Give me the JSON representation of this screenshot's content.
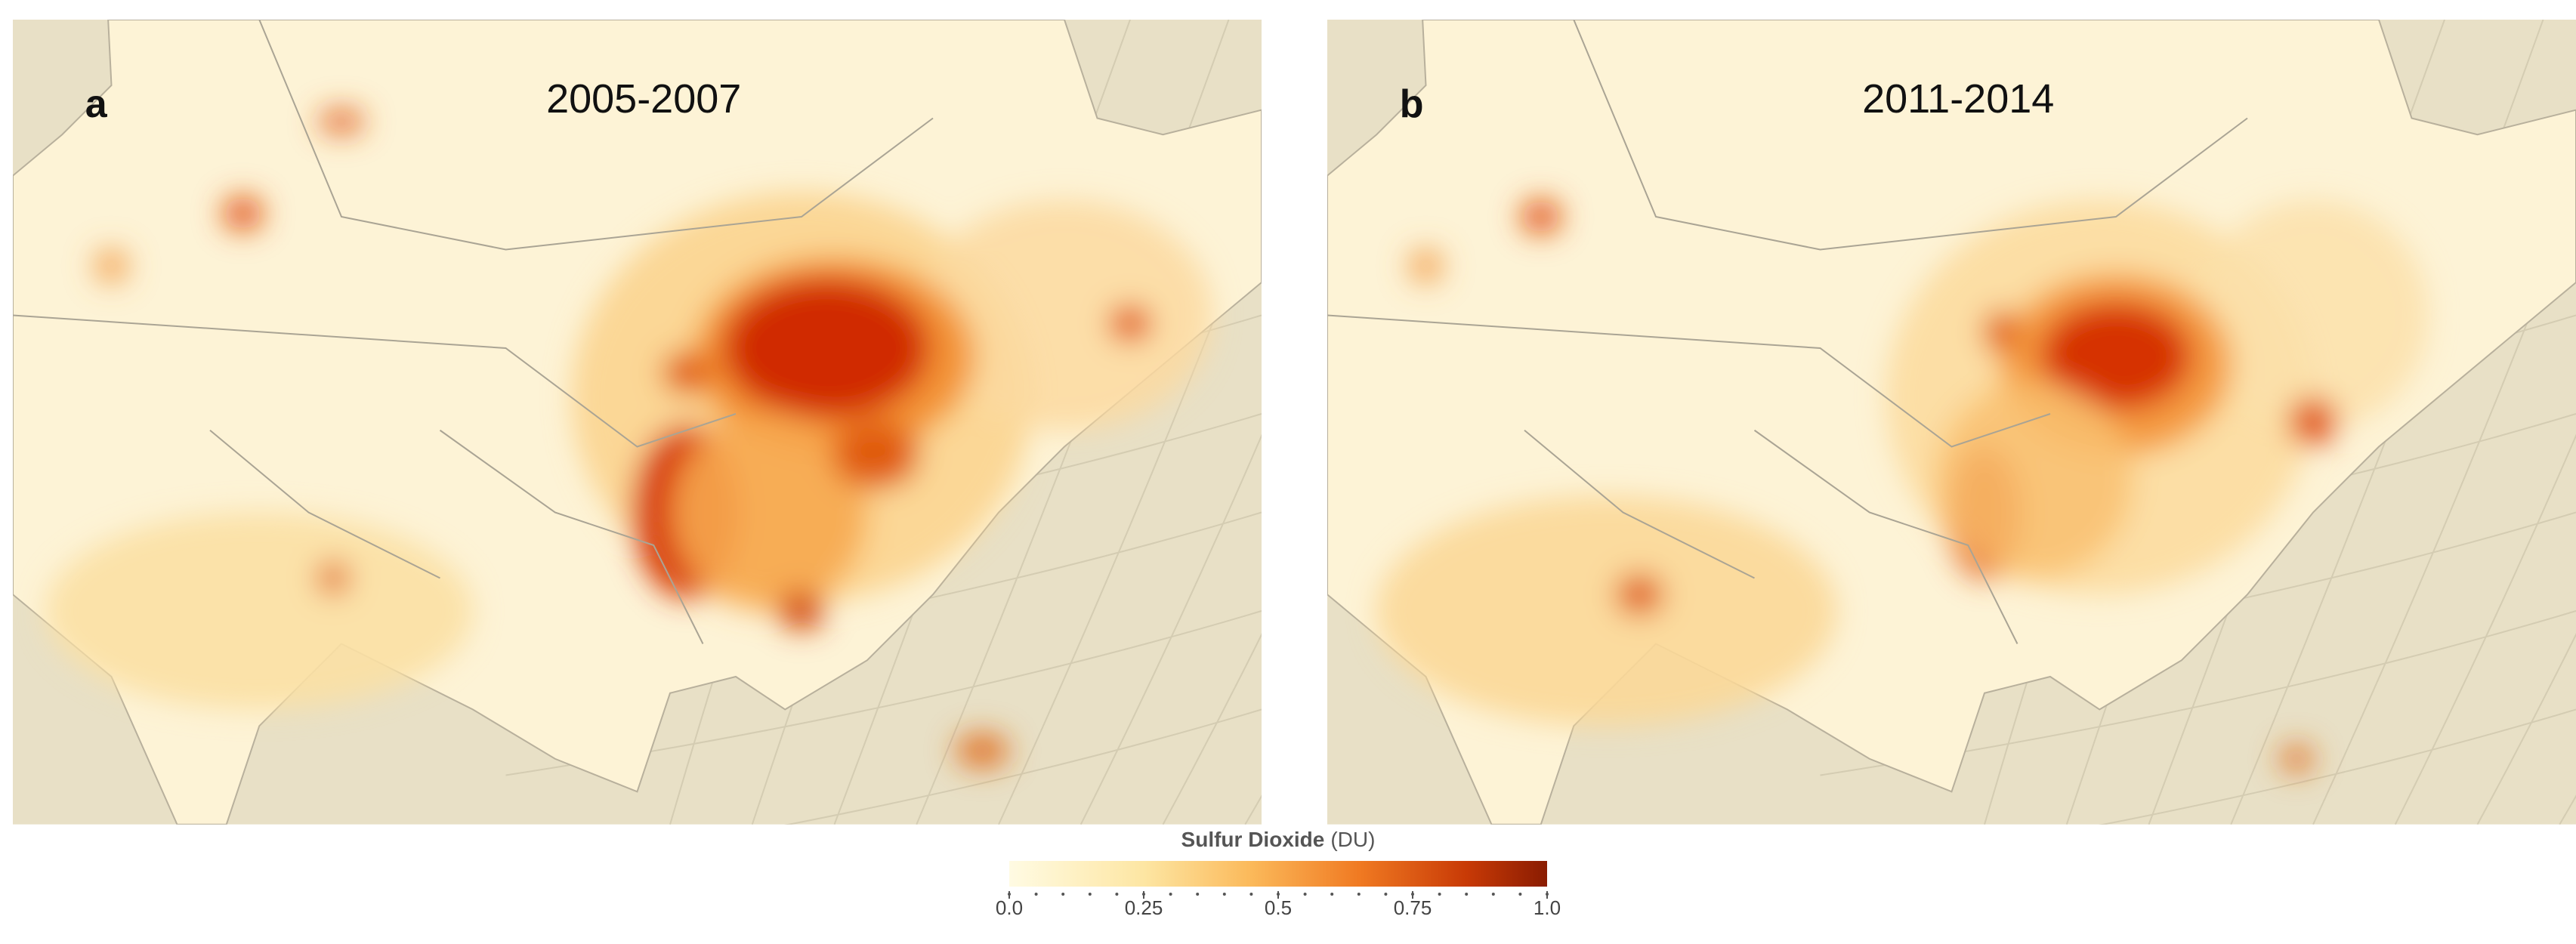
{
  "panels": [
    {
      "label": "a",
      "period": "2005-2007"
    },
    {
      "label": "b",
      "period": "2011-2014"
    }
  ],
  "colorbar": {
    "title": "Sulfur Dioxide",
    "unit": "(DU)",
    "range": [
      0,
      1
    ],
    "ticks": [
      {
        "value": 0,
        "label": "0.0"
      },
      0.25,
      0.5,
      0.75,
      {
        "value": 1,
        "label": "1.0"
      }
    ]
  }
}
